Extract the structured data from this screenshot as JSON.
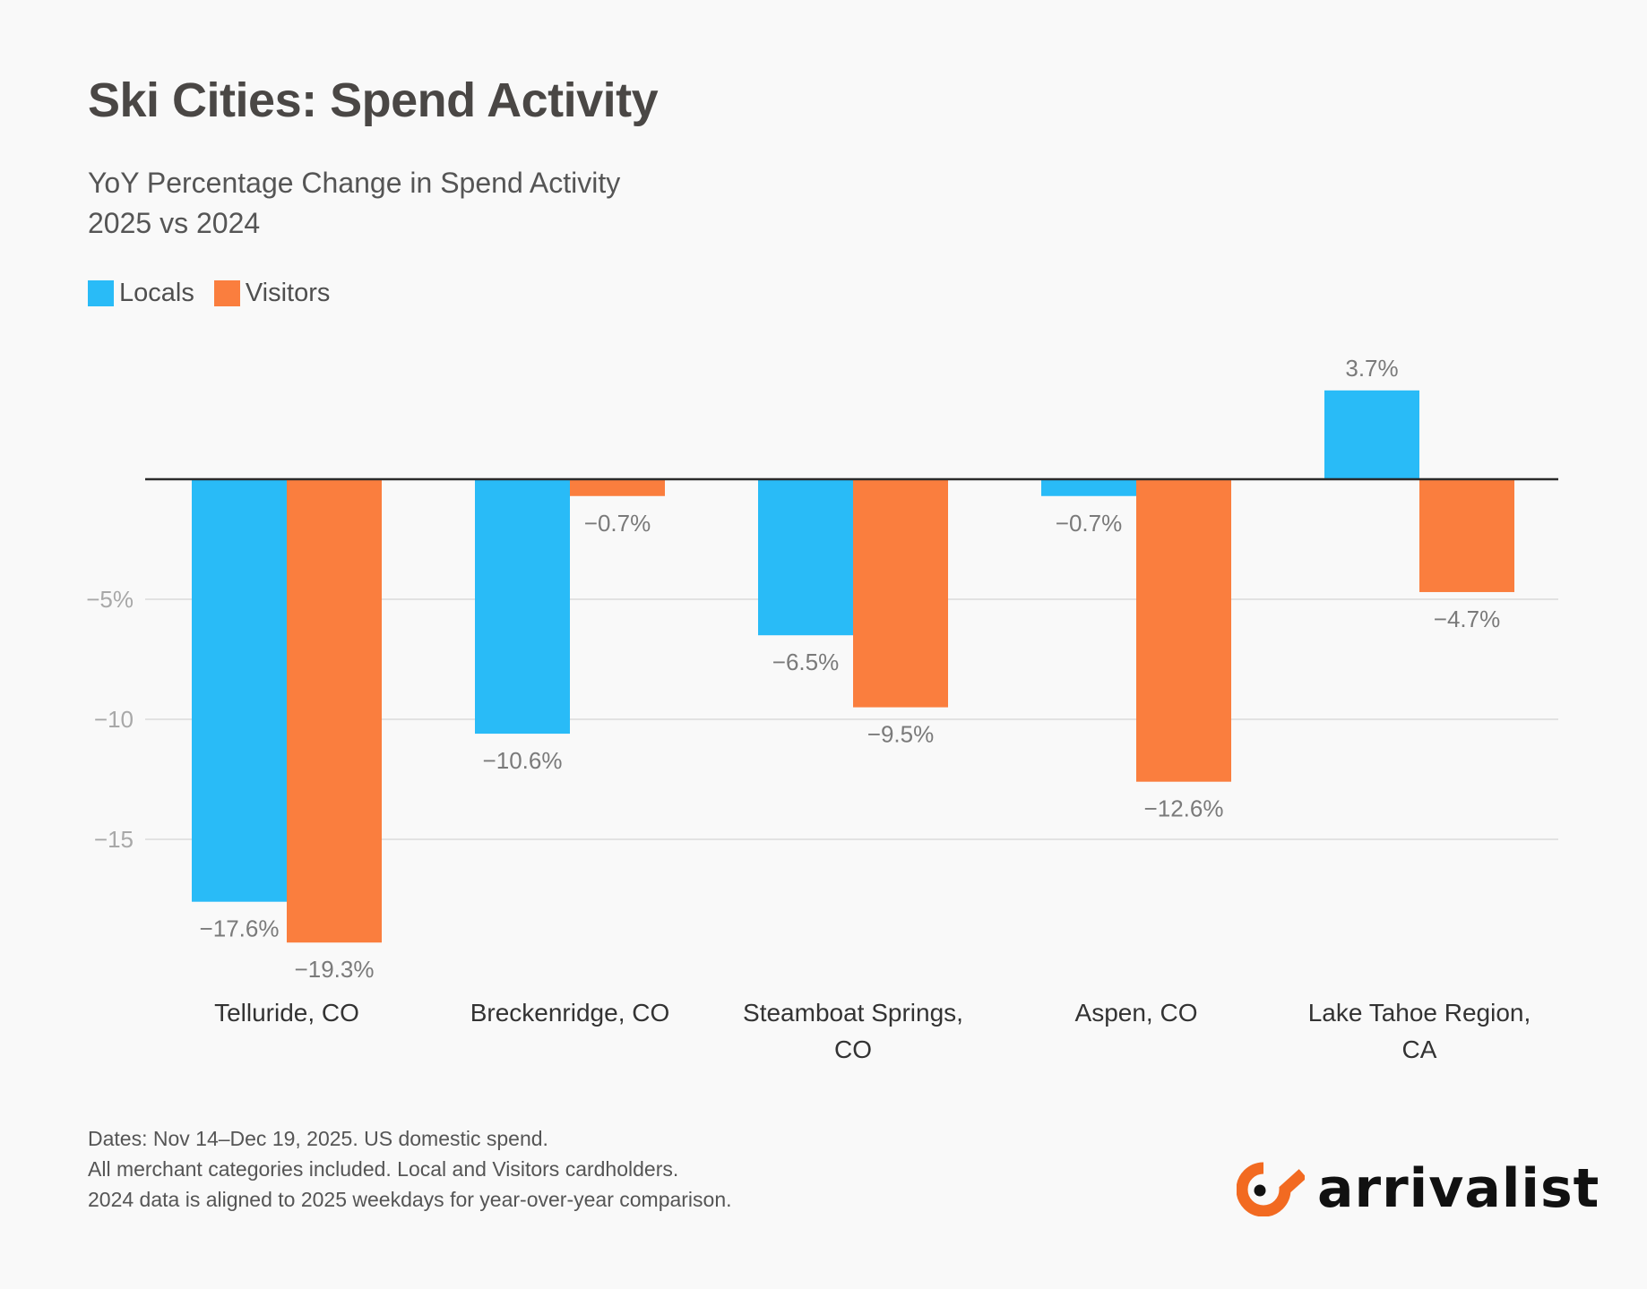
{
  "header": {
    "title": "Ski Cities: Spend Activity",
    "subtitle_lines": [
      "YoY Percentage Change in Spend Activity",
      "2025 vs 2024"
    ]
  },
  "legend": [
    {
      "label": "Locals",
      "color": "#29bbf7"
    },
    {
      "label": "Visitors",
      "color": "#fa7e3e"
    }
  ],
  "footer": {
    "lines": [
      "Dates: Nov 14–Dec 19, 2025. US domestic spend.",
      "All merchant categories included. Local and Visitors cardholders.",
      "2024 data is aligned to 2025 weekdays for year-over-year comparison."
    ]
  },
  "brand": {
    "name": "arrivalist",
    "accent": "#f26a21",
    "text_color": "#111111"
  },
  "chart_data": {
    "type": "bar",
    "title": "Ski Cities: Spend Activity",
    "subtitle": "YoY Percentage Change in Spend Activity 2025 vs 2024",
    "xlabel": "",
    "ylabel": "",
    "categories": [
      [
        "Telluride, CO"
      ],
      [
        "Breckenridge, CO"
      ],
      [
        "Steamboat Springs,",
        "CO"
      ],
      [
        "Aspen, CO"
      ],
      [
        "Lake Tahoe Region,",
        "CA"
      ]
    ],
    "series": [
      {
        "name": "Locals",
        "color": "#29bbf7",
        "values": [
          -17.6,
          -10.6,
          -6.5,
          -0.7,
          3.7
        ],
        "labels": [
          "−17.6%",
          "−10.6%",
          "−6.5%",
          "−0.7%",
          "3.7%"
        ]
      },
      {
        "name": "Visitors",
        "color": "#fa7e3e",
        "values": [
          -19.3,
          -0.7,
          -9.5,
          -12.6,
          -4.7
        ],
        "labels": [
          "−19.3%",
          "−0.7%",
          "−9.5%",
          "−12.6%",
          "−4.7%"
        ]
      }
    ],
    "yticks": [
      {
        "value": -5,
        "label": "−5%"
      },
      {
        "value": -10,
        "label": "−10"
      },
      {
        "value": -15,
        "label": "−15"
      }
    ],
    "ylim": [
      -20,
      4
    ],
    "grid": true,
    "legend_position": "top-left",
    "zero_line_color": "#2b2b2b",
    "grid_color": "#e2e2e2"
  }
}
